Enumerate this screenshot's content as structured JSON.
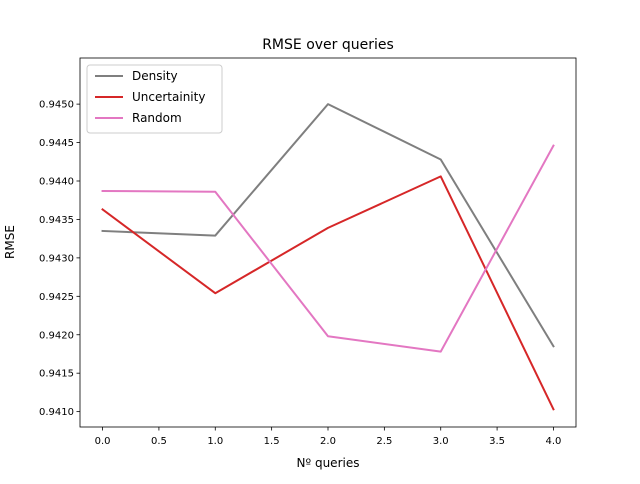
{
  "chart_data": {
    "type": "line",
    "title": "RMSE over queries",
    "xlabel": "Nº queries",
    "ylabel": "RMSE",
    "xlim": [
      -0.2,
      4.2
    ],
    "ylim": [
      0.9408,
      0.9456
    ],
    "xticks": [
      0.0,
      0.5,
      1.0,
      1.5,
      2.0,
      2.5,
      3.0,
      3.5,
      4.0
    ],
    "xtick_labels": [
      "0.0",
      "0.5",
      "1.0",
      "1.5",
      "2.0",
      "2.5",
      "3.0",
      "3.5",
      "4.0"
    ],
    "yticks": [
      0.941,
      0.9415,
      0.942,
      0.9425,
      0.943,
      0.9435,
      0.944,
      0.9445,
      0.945
    ],
    "ytick_labels": [
      "0.9410",
      "0.9415",
      "0.9420",
      "0.9425",
      "0.9430",
      "0.9435",
      "0.9440",
      "0.9445",
      "0.9450"
    ],
    "grid": false,
    "legend": "top-left",
    "x": [
      0,
      1,
      2,
      3,
      4
    ],
    "series": [
      {
        "name": "Density",
        "color": "#7f7f7f",
        "values": [
          0.94335,
          0.94329,
          0.945,
          0.94428,
          0.94185
        ]
      },
      {
        "name": "Uncertainity",
        "color": "#d62728",
        "values": [
          0.94363,
          0.94254,
          0.94339,
          0.94406,
          0.94103
        ]
      },
      {
        "name": "Random",
        "color": "#e377c2",
        "values": [
          0.94387,
          0.94386,
          0.94198,
          0.94178,
          0.94446
        ]
      }
    ]
  }
}
